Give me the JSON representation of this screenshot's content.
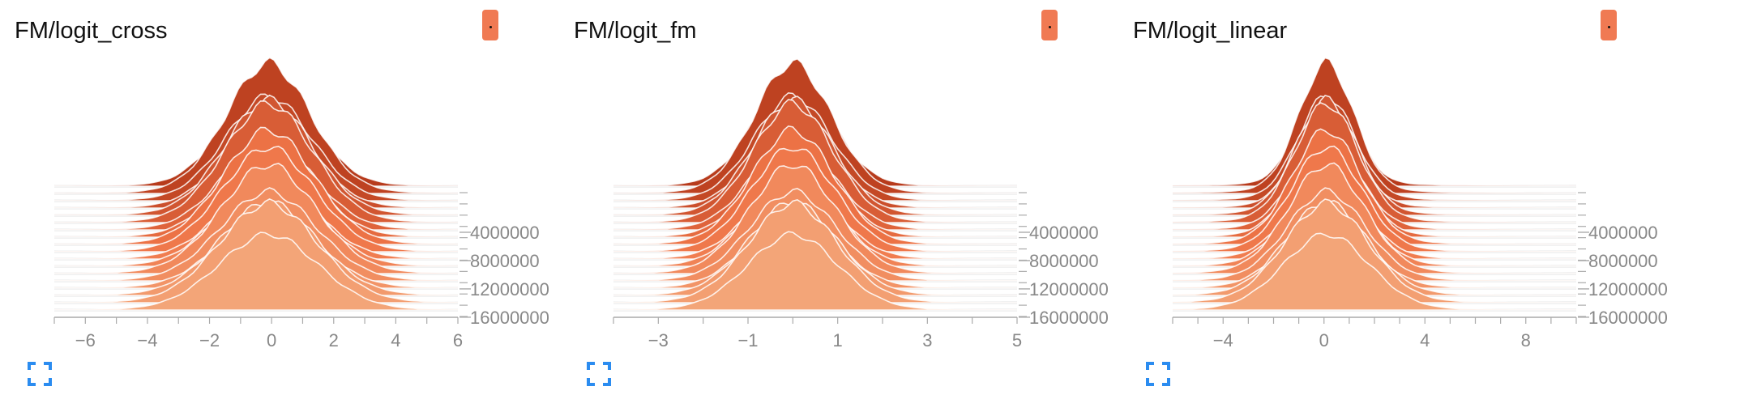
{
  "colors": {
    "dark": "#b73b1c",
    "mid": "#ef7548",
    "light": "#f3a578",
    "grid": "#d8d8d8",
    "axis": "#aaaaaa",
    "tick_text": "#888888",
    "toggle": "#f07a53",
    "expand_icon": "#2b8cf0"
  },
  "chart_data": [
    {
      "type": "area",
      "title": "FM/logit_cross",
      "x_ticks": [
        "−6",
        "−4",
        "−2",
        "0",
        "2",
        "4",
        "6"
      ],
      "x_tick_values": [
        -6,
        -4,
        -2,
        0,
        2,
        4,
        6
      ],
      "xlim": [
        -7,
        6
      ],
      "y_ticks": [
        "4000000",
        "8000000",
        "12000000",
        "16000000"
      ],
      "y_tick_values": [
        4000000,
        8000000,
        12000000,
        16000000
      ],
      "steps_range": [
        0,
        17500000
      ],
      "distribution": {
        "center": -0.1,
        "sigma_first": 1.35,
        "sigma_last": 1.6,
        "tail": 2.2
      },
      "series_count": 18
    },
    {
      "type": "area",
      "title": "FM/logit_fm",
      "x_ticks": [
        "−3",
        "−1",
        "1",
        "3",
        "5"
      ],
      "x_tick_values": [
        -3,
        -1,
        1,
        3,
        5
      ],
      "xlim": [
        -4,
        5
      ],
      "y_ticks": [
        "4000000",
        "8000000",
        "12000000",
        "16000000"
      ],
      "y_tick_values": [
        4000000,
        8000000,
        12000000,
        16000000
      ],
      "steps_range": [
        0,
        17500000
      ],
      "distribution": {
        "center": 0.0,
        "sigma_first": 0.85,
        "sigma_last": 1.0,
        "tail": 1.4
      },
      "series_count": 18
    },
    {
      "type": "area",
      "title": "FM/logit_linear",
      "x_ticks": [
        "−4",
        "0",
        "4",
        "8"
      ],
      "x_tick_values": [
        -4,
        0,
        4,
        8
      ],
      "xlim": [
        -6,
        10
      ],
      "y_ticks": [
        "4000000",
        "8000000",
        "12000000",
        "16000000"
      ],
      "y_tick_values": [
        4000000,
        8000000,
        12000000,
        16000000
      ],
      "steps_range": [
        0,
        17500000
      ],
      "distribution": {
        "center": 0.1,
        "sigma_first": 1.05,
        "sigma_last": 1.7,
        "tail": 2.8
      },
      "series_count": 18
    }
  ]
}
